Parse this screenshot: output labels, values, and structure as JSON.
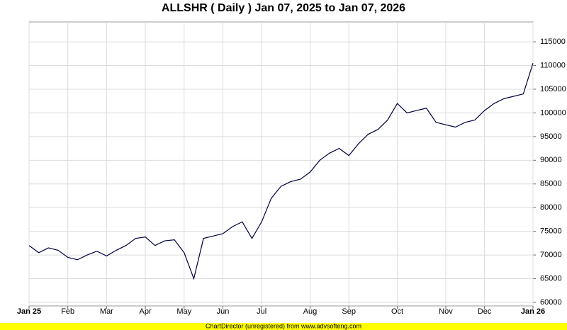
{
  "chart_data": {
    "type": "line",
    "title": "ALLSHR ( Daily ) Jan 07, 2025 to Jan 07, 2026",
    "footer": "ChartDirector (unregistered) from www.advsofteng.com",
    "categories": [
      "Jan 25",
      null,
      null,
      null,
      "Feb",
      null,
      null,
      null,
      "Mar",
      null,
      null,
      null,
      "Apr",
      null,
      null,
      null,
      "May",
      null,
      null,
      null,
      "Jun",
      null,
      null,
      null,
      "Jul",
      null,
      null,
      null,
      null,
      "Aug",
      null,
      null,
      null,
      "Sep",
      null,
      null,
      null,
      null,
      "Oct",
      null,
      null,
      null,
      null,
      "Nov",
      null,
      null,
      null,
      "Dec",
      null,
      null,
      null,
      null,
      "Jan 26"
    ],
    "series": [
      {
        "name": "ALLSHR",
        "color": "#000040",
        "values": [
          72000,
          70500,
          71500,
          71000,
          69500,
          69000,
          70000,
          70800,
          69800,
          71000,
          72000,
          73500,
          73800,
          72000,
          73000,
          73200,
          70500,
          65000,
          73500,
          74000,
          74500,
          76000,
          77000,
          73500,
          77000,
          82000,
          84500,
          85500,
          86000,
          87500,
          90000,
          91500,
          92500,
          91000,
          93500,
          95500,
          96500,
          98500,
          102000,
          100000,
          100500,
          101000,
          98000,
          97500,
          97000,
          98000,
          98500,
          100500,
          102000,
          103000,
          103500,
          104000,
          110500
        ]
      }
    ],
    "ylim": [
      59250,
      119200
    ],
    "yticks": [
      60000,
      65000,
      70000,
      75000,
      80000,
      85000,
      90000,
      95000,
      100000,
      105000,
      110000,
      115000
    ],
    "grid": true
  }
}
